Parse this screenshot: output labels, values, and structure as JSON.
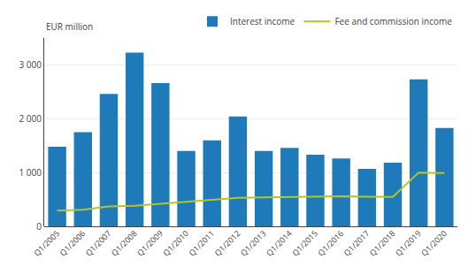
{
  "chart_data": {
    "type": "bar",
    "ylabel": "EUR million",
    "categories": [
      "Q1/2005",
      "Q1/2006",
      "Q1/2007",
      "Q1/2008",
      "Q1/2009",
      "Q1/2010",
      "Q1/2011",
      "Q1/2012",
      "Q1/2013",
      "Q1/2014",
      "Q1/2015",
      "Q1/2016",
      "Q1/2017",
      "Q1/2018",
      "Q1/2019",
      "Q1/2020"
    ],
    "series": [
      {
        "name": "Interest income",
        "type": "bar",
        "color": "#1e7ab8",
        "values": [
          1480,
          1750,
          2460,
          3230,
          2660,
          1400,
          1600,
          2040,
          1400,
          1460,
          1330,
          1260,
          1070,
          1185,
          2730,
          1830
        ]
      },
      {
        "name": "Fee and commission income",
        "type": "line",
        "color": "#b5c42a",
        "values": [
          290,
          310,
          370,
          380,
          420,
          460,
          490,
          530,
          540,
          545,
          545,
          560,
          550,
          545,
          1000,
          990
        ]
      }
    ],
    "ylim": [
      0,
      3500
    ],
    "yticks": [
      0,
      {
        "value": 1000,
        "label": "1 000"
      },
      {
        "value": 2000,
        "label": "2 000"
      },
      {
        "value": 3000,
        "label": "3 000"
      }
    ],
    "grid": true,
    "legend": "upper right"
  }
}
